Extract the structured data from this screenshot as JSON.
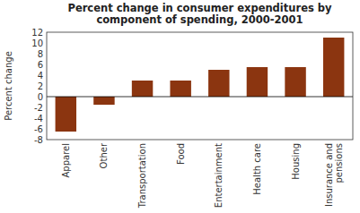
{
  "chart_data": {
    "type": "bar",
    "title": "Percent change in consumer expenditures by\ncomponent of spending, 2000-2001",
    "categories": [
      "Apparel",
      "Other",
      "Transportation",
      "Food",
      "Entertainment",
      "Health care",
      "Housing",
      "Insurance and\npensions"
    ],
    "values": [
      -6.5,
      -1.5,
      3.0,
      3.0,
      5.0,
      5.5,
      5.5,
      11.0
    ],
    "color": "#8B3510",
    "ylabel": "Percent change",
    "ylim": [
      -8,
      12
    ],
    "yticks": [
      -8,
      -6,
      -4,
      -2,
      0,
      2,
      4,
      6,
      8,
      10,
      12
    ],
    "grid": false
  }
}
